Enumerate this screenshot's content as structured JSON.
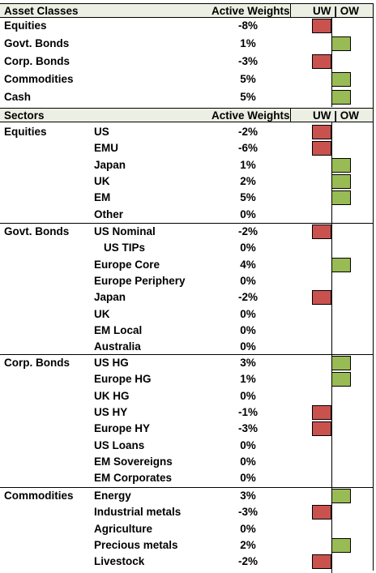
{
  "asset_header": {
    "col1": "Asset Classes",
    "col2": "Active Weights",
    "col3": "UW | OW"
  },
  "asset_rows": [
    {
      "label": "Equities",
      "weight": "-8%",
      "value": -8
    },
    {
      "label": "Govt. Bonds",
      "weight": "1%",
      "value": 1
    },
    {
      "label": "Corp. Bonds",
      "weight": "-3%",
      "value": -3
    },
    {
      "label": "Commodities",
      "weight": "5%",
      "value": 5
    },
    {
      "label": "Cash",
      "weight": "5%",
      "value": 5
    }
  ],
  "sector_header": {
    "col1": "Sectors",
    "col2": "Active Weights",
    "col3": "UW | OW"
  },
  "sector_groups": [
    {
      "group": "Equities",
      "rows": [
        {
          "label": "US",
          "weight": "-2%",
          "value": -2
        },
        {
          "label": "EMU",
          "weight": "-6%",
          "value": -6
        },
        {
          "label": "Japan",
          "weight": "1%",
          "value": 1
        },
        {
          "label": "UK",
          "weight": "2%",
          "value": 2
        },
        {
          "label": "EM",
          "weight": "5%",
          "value": 5
        },
        {
          "label": "Other",
          "weight": "0%",
          "value": 0
        }
      ]
    },
    {
      "group": "Govt. Bonds",
      "rows": [
        {
          "label": "US Nominal",
          "weight": "-2%",
          "value": -2
        },
        {
          "label": "US TIPs",
          "weight": "0%",
          "value": 0,
          "indent": true
        },
        {
          "label": "Europe Core",
          "weight": "4%",
          "value": 4
        },
        {
          "label": "Europe Periphery",
          "weight": "0%",
          "value": 0
        },
        {
          "label": "Japan",
          "weight": "-2%",
          "value": -2
        },
        {
          "label": "UK",
          "weight": "0%",
          "value": 0
        },
        {
          "label": "EM Local",
          "weight": "0%",
          "value": 0
        },
        {
          "label": "Australia",
          "weight": "0%",
          "value": 0
        }
      ]
    },
    {
      "group": "Corp. Bonds",
      "rows": [
        {
          "label": "US HG",
          "weight": "3%",
          "value": 3
        },
        {
          "label": "Europe HG",
          "weight": "1%",
          "value": 1
        },
        {
          "label": "UK HG",
          "weight": "0%",
          "value": 0
        },
        {
          "label": "US HY",
          "weight": "-1%",
          "value": -1
        },
        {
          "label": "Europe HY",
          "weight": "-3%",
          "value": -3
        },
        {
          "label": "US Loans",
          "weight": "0%",
          "value": 0
        },
        {
          "label": "EM Sovereigns",
          "weight": "0%",
          "value": 0
        },
        {
          "label": "EM Corporates",
          "weight": "0%",
          "value": 0
        }
      ]
    },
    {
      "group": "Commodities",
      "rows": [
        {
          "label": "Energy",
          "weight": "3%",
          "value": 3
        },
        {
          "label": "Industrial metals",
          "weight": "-3%",
          "value": -3
        },
        {
          "label": "Agriculture",
          "weight": "0%",
          "value": 0
        },
        {
          "label": "Precious metals",
          "weight": "2%",
          "value": 2
        },
        {
          "label": "Livestock",
          "weight": "-2%",
          "value": -2
        }
      ]
    }
  ],
  "colors": {
    "uw": "#c9524f",
    "ow": "#99bb55",
    "header_bg": "#ecefe3"
  }
}
